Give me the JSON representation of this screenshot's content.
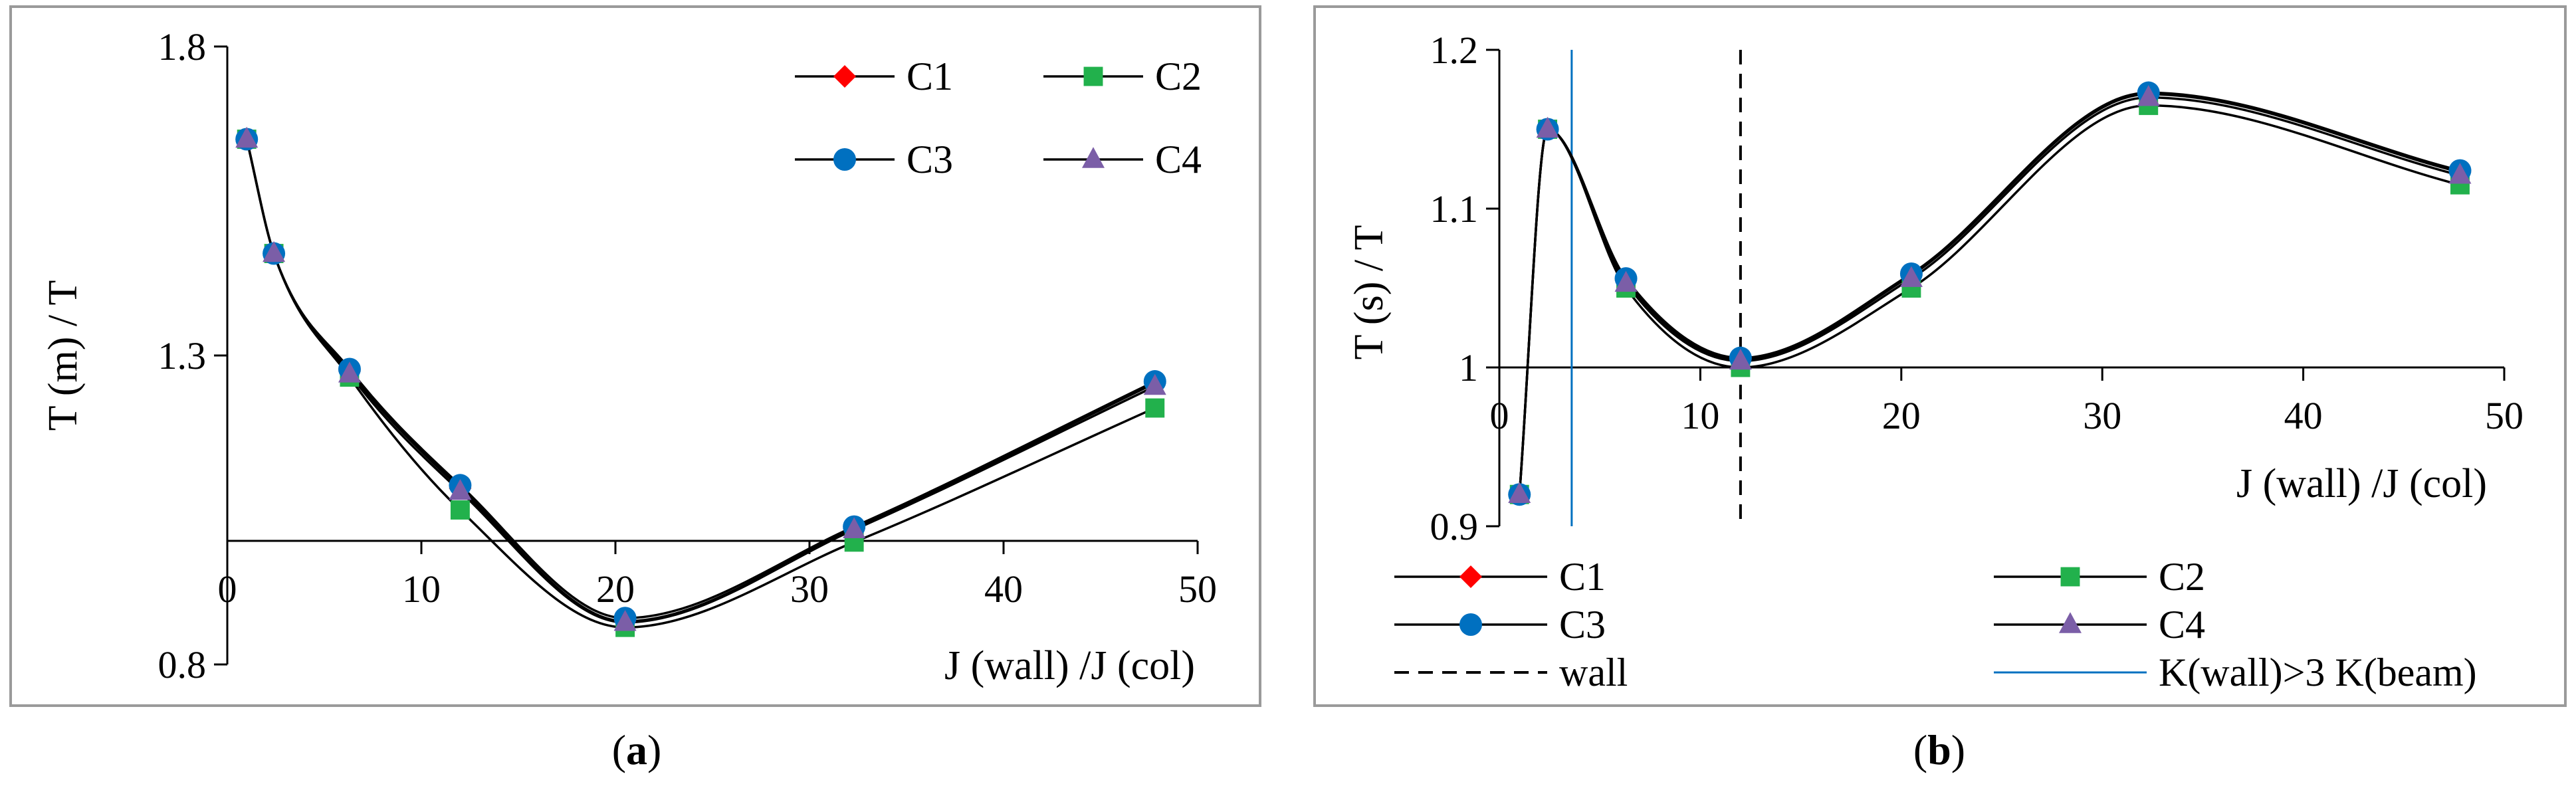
{
  "colors": {
    "C1": "#ff0000",
    "C2": "#22b14c",
    "C3": "#0070c0",
    "C4": "#7b5ea7",
    "curve": "#000000",
    "wall_line": "#000000",
    "kwall_line": "#0070c0",
    "frame": "#9a9a9a"
  },
  "chart_data": [
    {
      "type": "scatter",
      "title": "",
      "caption_open": "(",
      "caption_letter": "a",
      "caption_close": ")",
      "xlabel": "J (wall) /J (col)",
      "ylabel": "T (m) / T",
      "xlim": [
        0,
        50
      ],
      "ylim": [
        0.8,
        1.8
      ],
      "x_cross_at": 1.0,
      "xticks": [
        "0",
        "10",
        "20",
        "30",
        "40",
        "50"
      ],
      "yticks": [
        "0.8",
        "1.3",
        "1.8"
      ],
      "legend": [
        "C1",
        "C2",
        "C3",
        "C4"
      ],
      "series": [
        {
          "name": "C1",
          "marker": "diamond",
          "x": [
            1.0,
            2.4,
            6.3,
            12.0,
            20.5,
            32.3,
            47.8
          ],
          "y": [
            1.65,
            1.465,
            1.275,
            1.085,
            0.87,
            1.02,
            1.255
          ]
        },
        {
          "name": "C2",
          "marker": "square",
          "x": [
            1.0,
            2.4,
            6.3,
            12.0,
            20.5,
            32.3,
            47.8
          ],
          "y": [
            1.65,
            1.465,
            1.265,
            1.05,
            0.86,
            0.998,
            1.215
          ]
        },
        {
          "name": "C3",
          "marker": "circle",
          "x": [
            1.0,
            2.4,
            6.3,
            12.0,
            20.5,
            32.3,
            47.8
          ],
          "y": [
            1.65,
            1.465,
            1.278,
            1.09,
            0.875,
            1.023,
            1.258
          ]
        },
        {
          "name": "C4",
          "marker": "triangle",
          "x": [
            1.0,
            2.4,
            6.3,
            12.0,
            20.5,
            32.3,
            47.8
          ],
          "y": [
            1.65,
            1.465,
            1.27,
            1.08,
            0.868,
            1.018,
            1.25
          ]
        }
      ]
    },
    {
      "type": "scatter",
      "title": "",
      "caption_open": "(",
      "caption_letter": "b",
      "caption_close": ")",
      "xlabel": "J (wall) /J (col)",
      "ylabel": "T (s) / T",
      "xlim": [
        0,
        50
      ],
      "ylim": [
        0.9,
        1.2
      ],
      "x_cross_at": 1.0,
      "xticks": [
        "0",
        "10",
        "20",
        "30",
        "40",
        "50"
      ],
      "yticks": [
        "0.9",
        "1",
        "1.1",
        "1.2"
      ],
      "legend": [
        "C1",
        "C2",
        "C3",
        "C4",
        "wall",
        "K(wall)>3 K(beam)"
      ],
      "wall_x": 12.0,
      "kwall_x": 3.6,
      "series": [
        {
          "name": "C1",
          "marker": "diamond",
          "x": [
            1.0,
            2.4,
            6.3,
            12.0,
            20.5,
            32.3,
            47.8
          ],
          "y": [
            0.92,
            1.15,
            1.055,
            1.005,
            1.058,
            1.172,
            1.123
          ]
        },
        {
          "name": "C2",
          "marker": "square",
          "x": [
            1.0,
            2.4,
            6.3,
            12.0,
            20.5,
            32.3,
            47.8
          ],
          "y": [
            0.92,
            1.15,
            1.05,
            1.0,
            1.05,
            1.165,
            1.115
          ]
        },
        {
          "name": "C3",
          "marker": "circle",
          "x": [
            1.0,
            2.4,
            6.3,
            12.0,
            20.5,
            32.3,
            47.8
          ],
          "y": [
            0.92,
            1.15,
            1.056,
            1.006,
            1.059,
            1.173,
            1.124
          ]
        },
        {
          "name": "C4",
          "marker": "triangle",
          "x": [
            1.0,
            2.4,
            6.3,
            12.0,
            20.5,
            32.3,
            47.8
          ],
          "y": [
            0.92,
            1.15,
            1.053,
            1.004,
            1.056,
            1.17,
            1.121
          ]
        }
      ]
    }
  ]
}
